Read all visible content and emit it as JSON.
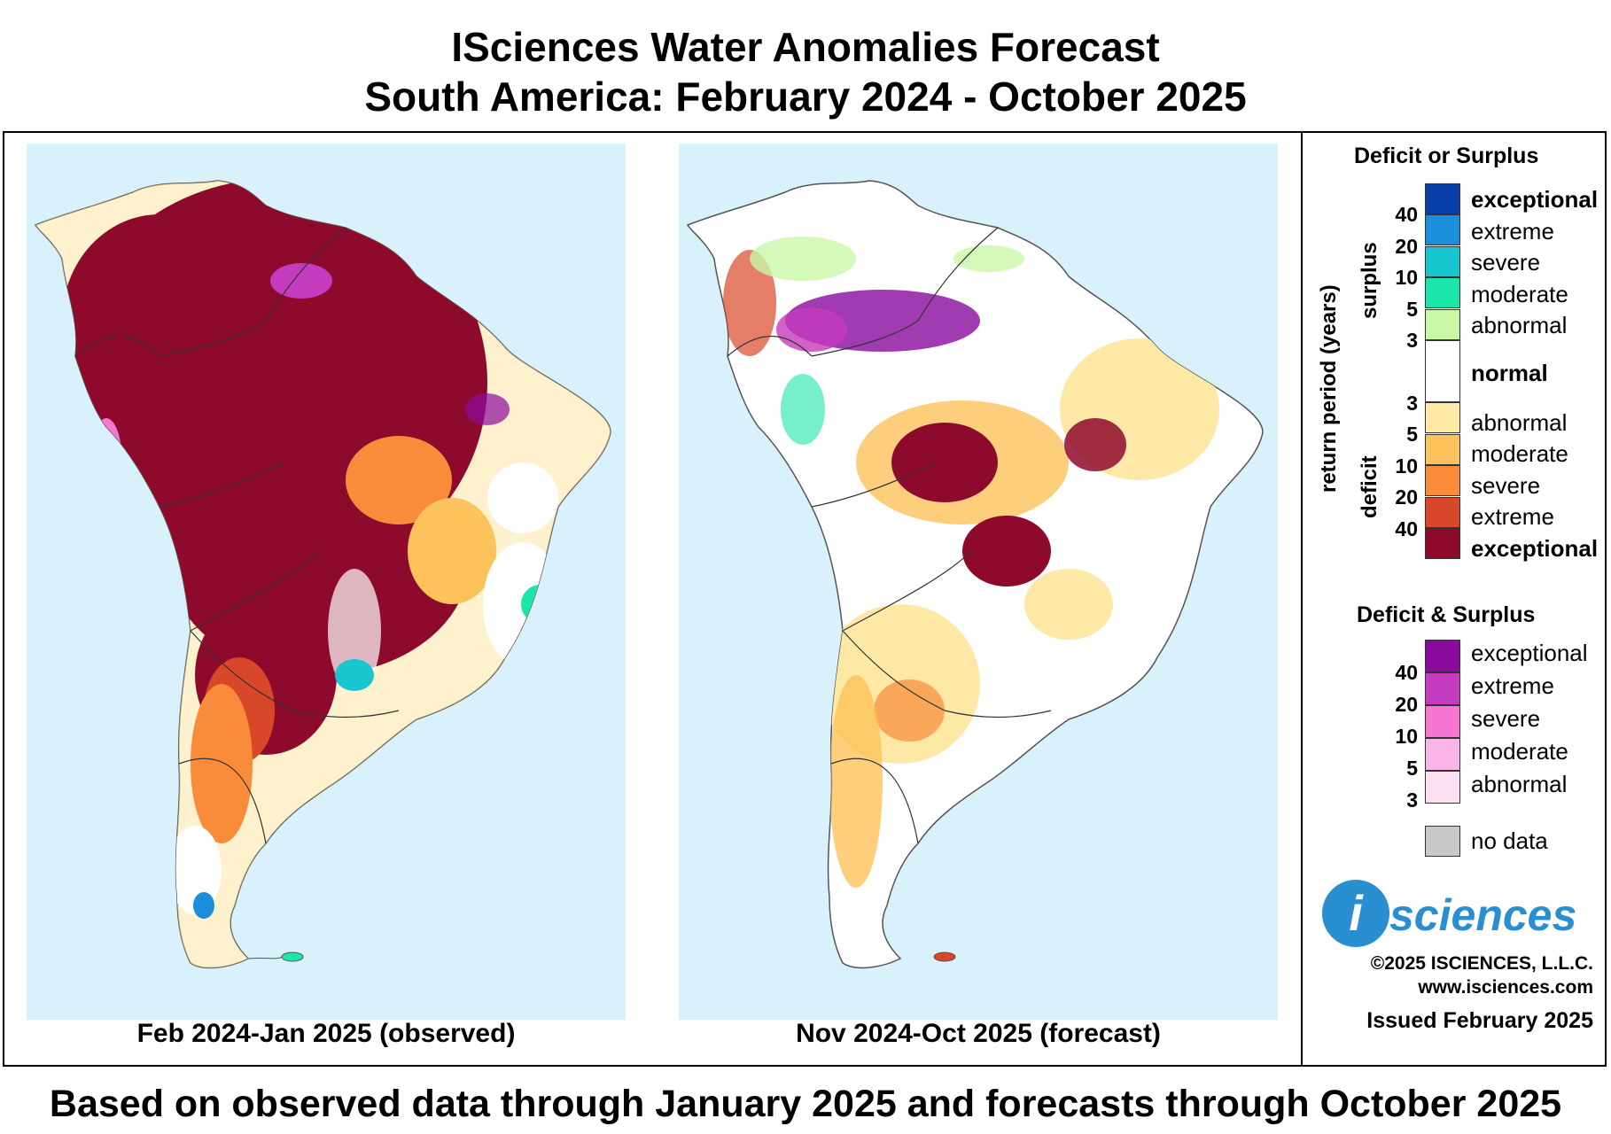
{
  "title": {
    "line1": "ISciences Water Anomalies Forecast",
    "line2": "South America: February 2024 - October 2025"
  },
  "maps": [
    {
      "caption": "Feb 2024-Jan 2025 (observed)"
    },
    {
      "caption": "Nov 2024-Oct 2025 (forecast)"
    }
  ],
  "footer": "Based on observed data through January 2025 and forecasts through October 2025",
  "legend": {
    "heading1": "Deficit or Surplus",
    "axis_label": "return period (years)",
    "surplus_label": "surplus",
    "deficit_label": "deficit",
    "surplus": [
      {
        "label": "exceptional",
        "color": "#0a3fa8"
      },
      {
        "label": "extreme",
        "color": "#1c8fdc"
      },
      {
        "label": "severe",
        "color": "#17c6cf"
      },
      {
        "label": "moderate",
        "color": "#19e6a8"
      },
      {
        "label": "abnormal",
        "color": "#c9f7a6"
      }
    ],
    "surplus_ticks": [
      "40",
      "20",
      "10",
      "5",
      "3"
    ],
    "normal_label": "normal",
    "normal_color": "#ffffff",
    "deficit": [
      {
        "label": "abnormal",
        "color": "#fde8a6"
      },
      {
        "label": "moderate",
        "color": "#fcc25b"
      },
      {
        "label": "severe",
        "color": "#f98c3a"
      },
      {
        "label": "extreme",
        "color": "#d9472a"
      },
      {
        "label": "exceptional",
        "color": "#8e0a2d"
      }
    ],
    "deficit_ticks": [
      "3",
      "5",
      "10",
      "20",
      "40"
    ],
    "heading2": "Deficit & Surplus",
    "both": [
      {
        "label": "exceptional",
        "color": "#8a0a9e"
      },
      {
        "label": "extreme",
        "color": "#c43bbd"
      },
      {
        "label": "severe",
        "color": "#f577d2"
      },
      {
        "label": "moderate",
        "color": "#f9b4ea"
      },
      {
        "label": "abnormal",
        "color": "#fde0f3"
      }
    ],
    "both_ticks": [
      "40",
      "20",
      "10",
      "5",
      "3"
    ],
    "nodata_label": "no data",
    "nodata_color": "#c8c8c8"
  },
  "branding": {
    "logo_letter": "i",
    "logo_text": "sciences",
    "copyright": "©2025 ISCIENCES, L.L.C.",
    "website": "www.isciences.com",
    "issued": "Issued February 2025"
  },
  "colors": {
    "ocean": "#d8f1fb",
    "land": "#ffffff",
    "border": "#333333"
  }
}
